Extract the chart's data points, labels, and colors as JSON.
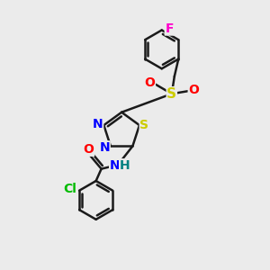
{
  "bg_color": "#ebebeb",
  "bond_color": "#1a1a1a",
  "bond_width": 1.8,
  "atom_colors": {
    "N": "#0000ff",
    "S": "#cccc00",
    "O": "#ff0000",
    "F": "#ff00cc",
    "Cl": "#00bb00",
    "H": "#008080"
  },
  "font_size": 10
}
